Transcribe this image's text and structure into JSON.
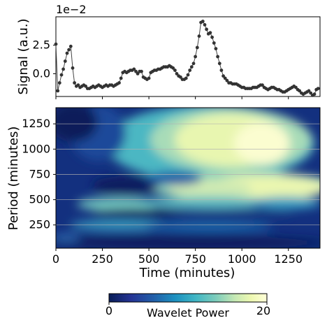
{
  "chart_data": [
    {
      "type": "line",
      "ylabel": "Signal (a.u.)",
      "offset_text": "1e−2",
      "x_range": [
        0,
        1420
      ],
      "ylim": [
        -2.0,
        5.0
      ],
      "yticks": [
        0.0,
        2.5
      ],
      "ytick_labels": [
        "0.0",
        "2.5"
      ],
      "series": [
        {
          "marker": "dot",
          "color": "#333333",
          "x": [
            0,
            10,
            20,
            30,
            40,
            50,
            60,
            70,
            80,
            90,
            100,
            110,
            120,
            130,
            140,
            150,
            160,
            170,
            180,
            190,
            200,
            210,
            220,
            230,
            240,
            250,
            260,
            270,
            280,
            290,
            300,
            310,
            320,
            330,
            340,
            350,
            360,
            370,
            380,
            390,
            400,
            410,
            420,
            430,
            440,
            450,
            460,
            470,
            480,
            490,
            500,
            510,
            520,
            530,
            540,
            550,
            560,
            570,
            580,
            590,
            600,
            610,
            620,
            630,
            640,
            650,
            660,
            670,
            680,
            690,
            700,
            710,
            720,
            730,
            740,
            750,
            760,
            770,
            780,
            790,
            800,
            810,
            820,
            830,
            840,
            850,
            860,
            870,
            880,
            890,
            900,
            910,
            920,
            930,
            940,
            950,
            960,
            970,
            980,
            990,
            1000,
            1010,
            1020,
            1030,
            1040,
            1050,
            1060,
            1070,
            1080,
            1090,
            1100,
            1110,
            1120,
            1130,
            1140,
            1150,
            1160,
            1170,
            1180,
            1190,
            1200,
            1210,
            1220,
            1230,
            1240,
            1250,
            1260,
            1270,
            1280,
            1290,
            1300,
            1310,
            1320,
            1330,
            1340,
            1350,
            1360,
            1370,
            1380,
            1390,
            1400,
            1410
          ],
          "y": [
            2.6,
            -1.5,
            -0.8,
            -0.1,
            0.4,
            1.1,
            1.8,
            2.1,
            2.4,
            0.5,
            -0.8,
            -1.1,
            -1.0,
            -1.2,
            -1.1,
            -1.0,
            -1.1,
            -1.3,
            -1.3,
            -1.2,
            -1.1,
            -1.2,
            -1.1,
            -1.0,
            -1.1,
            -1.2,
            -1.1,
            -1.0,
            -1.1,
            -1.0,
            -1.0,
            -1.1,
            -1.0,
            -0.9,
            -0.8,
            -0.4,
            0.1,
            0.2,
            0.1,
            0.2,
            0.3,
            0.3,
            0.4,
            0.2,
            0.0,
            0.2,
            0.2,
            -0.3,
            -0.4,
            -0.5,
            -0.4,
            0.1,
            0.2,
            0.3,
            0.3,
            0.4,
            0.4,
            0.5,
            0.6,
            0.6,
            0.6,
            0.7,
            0.6,
            0.5,
            0.3,
            0.0,
            -0.2,
            -0.3,
            -0.5,
            -0.5,
            -0.4,
            -0.1,
            0.3,
            0.6,
            0.9,
            1.5,
            2.3,
            3.3,
            4.5,
            4.6,
            4.3,
            3.9,
            3.5,
            3.6,
            3.2,
            2.7,
            2.2,
            1.5,
            0.9,
            0.3,
            -0.2,
            -0.4,
            -0.6,
            -0.8,
            -0.8,
            -0.9,
            -0.9,
            -0.9,
            -1.0,
            -1.1,
            -1.2,
            -1.2,
            -1.3,
            -1.3,
            -1.3,
            -1.3,
            -1.2,
            -1.2,
            -1.2,
            -1.1,
            -1.0,
            -1.0,
            -1.2,
            -1.3,
            -1.4,
            -1.3,
            -1.2,
            -1.2,
            -1.3,
            -1.4,
            -1.4,
            -1.5,
            -1.6,
            -1.6,
            -1.5,
            -1.4,
            -1.3,
            -1.2,
            -1.1,
            -1.2,
            -1.4,
            -1.5,
            -1.7,
            -1.8,
            -1.7,
            -1.6,
            -1.5,
            -1.7,
            -1.9,
            -1.8,
            -1.4,
            -1.3
          ]
        }
      ]
    },
    {
      "type": "heatmap",
      "xlabel": "Time (minutes)",
      "ylabel": "Period (minutes)",
      "xlim": [
        0,
        1420
      ],
      "ylim": [
        20,
        1410
      ],
      "xticks": [
        0,
        250,
        500,
        750,
        1000,
        1250
      ],
      "yticks": [
        250,
        500,
        750,
        1000,
        1250
      ],
      "grid": "horizontal",
      "colormap": "YlGnBu_r",
      "description_hidden": false
    }
  ],
  "colorbar": {
    "label": "Wavelet Power",
    "min_label": "0",
    "max_label": "20",
    "colors": [
      "#081d58",
      "#253494",
      "#225ea8",
      "#1d91c0",
      "#41b6c4",
      "#7fcdbb",
      "#c7e9b4",
      "#edf8b1",
      "#ffffd9"
    ]
  }
}
